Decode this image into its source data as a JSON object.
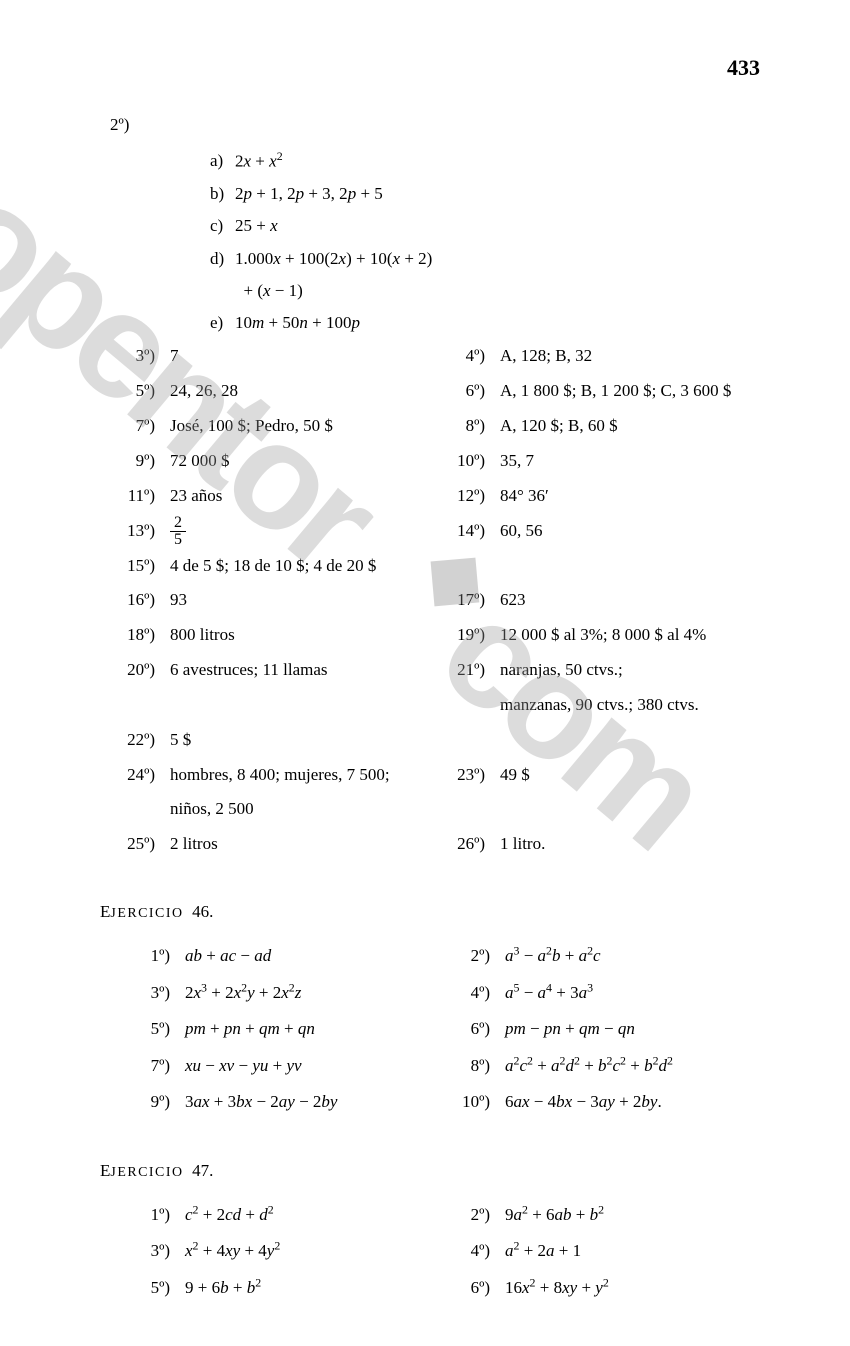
{
  "page_number": "433",
  "watermark_text": "opentor.com",
  "section2": {
    "head": "2º)",
    "sub": [
      {
        "l": "a)",
        "html": "2<i>x</i> + <i>x</i><sup>2</sup>"
      },
      {
        "l": "b)",
        "html": "2<i>p</i> + 1, 2<i>p</i> + 3, 2<i>p</i> + 5"
      },
      {
        "l": "c)",
        "html": "25 + <i>x</i>"
      },
      {
        "l": "d)",
        "html": "1.000<i>x</i> + 100(2<i>x</i>) + 10(<i>x</i> + 2)<br>&nbsp;&nbsp;+ (<i>x</i> − 1)"
      },
      {
        "l": "e)",
        "html": "10<i>m</i> + 50<i>n</i> + 100<i>p</i>"
      }
    ]
  },
  "answers": {
    "left": [
      {
        "l": "3º)",
        "html": "7"
      },
      {
        "l": "5º)",
        "html": "24, 26, 28"
      },
      {
        "l": "7º)",
        "html": "José, 100 $; Pedro, 50 $"
      },
      {
        "l": "9º)",
        "html": "72 000 $"
      },
      {
        "l": "11º)",
        "html": "23 años"
      },
      {
        "l": "13º)",
        "html": "<span class=\"frac\"><span class=\"num\">2</span><span class=\"den\">5</span></span>"
      },
      {
        "l": "15º)",
        "html": "4 de 5 $; 18 de 10 $; 4 de 20 $"
      },
      {
        "l": "16º)",
        "html": "93"
      },
      {
        "l": "18º)",
        "html": "800 litros"
      },
      {
        "l": "20º)",
        "html": "6 avestruces; 11 llamas"
      },
      {
        "l": "",
        "html": "&nbsp;"
      },
      {
        "l": "22º)",
        "html": "5 $"
      },
      {
        "l": "24º)",
        "html": "hombres, 8 400; mujeres, 7 500;<br>niños, 2 500"
      },
      {
        "l": "25º)",
        "html": "2 litros"
      }
    ],
    "right": [
      {
        "l": "4º)",
        "html": "A, 128; B, 32"
      },
      {
        "l": "6º)",
        "html": "A, 1 800 $; B, 1 200 $; C, 3 600 $"
      },
      {
        "l": "8º)",
        "html": "A, 120 $; B, 60 $"
      },
      {
        "l": "10º)",
        "html": "35, 7"
      },
      {
        "l": "12º)",
        "html": "84° 36′"
      },
      {
        "l": "14º)",
        "html": "60, 56"
      },
      {
        "l": "",
        "html": "&nbsp;"
      },
      {
        "l": "17º)",
        "html": "623"
      },
      {
        "l": "19º)",
        "html": "12 000 $ al 3%; 8 000 $ al 4%"
      },
      {
        "l": "21º)",
        "html": "naranjas, 50 ctvs.;<br>manzanas, 90 ctvs.; 380 ctvs."
      },
      {
        "l": "",
        "html": "&nbsp;"
      },
      {
        "l": "23º)",
        "html": "49 $"
      },
      {
        "l": "",
        "html": "&nbsp;"
      },
      {
        "l": "26º)",
        "html": "1 litro."
      }
    ]
  },
  "ej46": {
    "title_html": "E<span style=\"font-size:0.82em;letter-spacing:1.5px\">JERCICIO</span>&nbsp;&nbsp;46.",
    "left": [
      {
        "l": "1º)",
        "html": "<i>ab</i> + <i>ac</i> − <i>ad</i>"
      },
      {
        "l": "3º)",
        "html": "2<i>x</i><sup>3</sup> + 2<i>x</i><sup>2</sup><i>y</i> + 2<i>x</i><sup>2</sup><i>z</i>"
      },
      {
        "l": "5º)",
        "html": "<i>pm</i> + <i>pn</i> + <i>qm</i> + <i>qn</i>"
      },
      {
        "l": "7º)",
        "html": "<i>xu</i> − <i>xv</i> − <i>yu</i> + <i>yv</i>"
      },
      {
        "l": "9º)",
        "html": "3<i>ax</i> + 3<i>bx</i> − 2<i>ay</i> − 2<i>by</i>"
      }
    ],
    "right": [
      {
        "l": "2º)",
        "html": "<i>a</i><sup>3</sup> − <i>a</i><sup>2</sup><i>b</i> + <i>a</i><sup>2</sup><i>c</i>"
      },
      {
        "l": "4º)",
        "html": "<i>a</i><sup>5</sup> − <i>a</i><sup>4</sup> + 3<i>a</i><sup>3</sup>"
      },
      {
        "l": "6º)",
        "html": "<i>pm</i> − <i>pn</i> + <i>qm</i> − <i>qn</i>"
      },
      {
        "l": "8º)",
        "html": "<i>a</i><sup>2</sup><i>c</i><sup>2</sup> + <i>a</i><sup>2</sup><i>d</i><sup>2</sup> + <i>b</i><sup>2</sup><i>c</i><sup>2</sup> + <i>b</i><sup>2</sup><i>d</i><sup>2</sup>"
      },
      {
        "l": "10º)",
        "html": "6<i>ax</i> − 4<i>bx</i> − 3<i>ay</i> + 2<i>by</i>."
      }
    ]
  },
  "ej47": {
    "title_html": "E<span style=\"font-size:0.82em;letter-spacing:1.5px\">JERCICIO</span>&nbsp;&nbsp;47.",
    "left": [
      {
        "l": "1º)",
        "html": "<i>c</i><sup>2</sup> + 2<i>cd</i> + <i>d</i><sup>2</sup>"
      },
      {
        "l": "3º)",
        "html": "<i>x</i><sup>2</sup> + 4<i>xy</i> + 4<i>y</i><sup>2</sup>"
      },
      {
        "l": "5º)",
        "html": "9 + 6<i>b</i> + <i>b</i><sup>2</sup>"
      }
    ],
    "right": [
      {
        "l": "2º)",
        "html": "9<i>a</i><sup>2</sup> + 6<i>ab</i> + <i>b</i><sup>2</sup>"
      },
      {
        "l": "4º)",
        "html": "<i>a</i><sup>2</sup> + 2<i>a</i> + 1"
      },
      {
        "l": "6º)",
        "html": "16<i>x</i><sup>2</sup> + 8<i>xy</i> + <i>y</i><sup>2</sup>"
      }
    ]
  }
}
